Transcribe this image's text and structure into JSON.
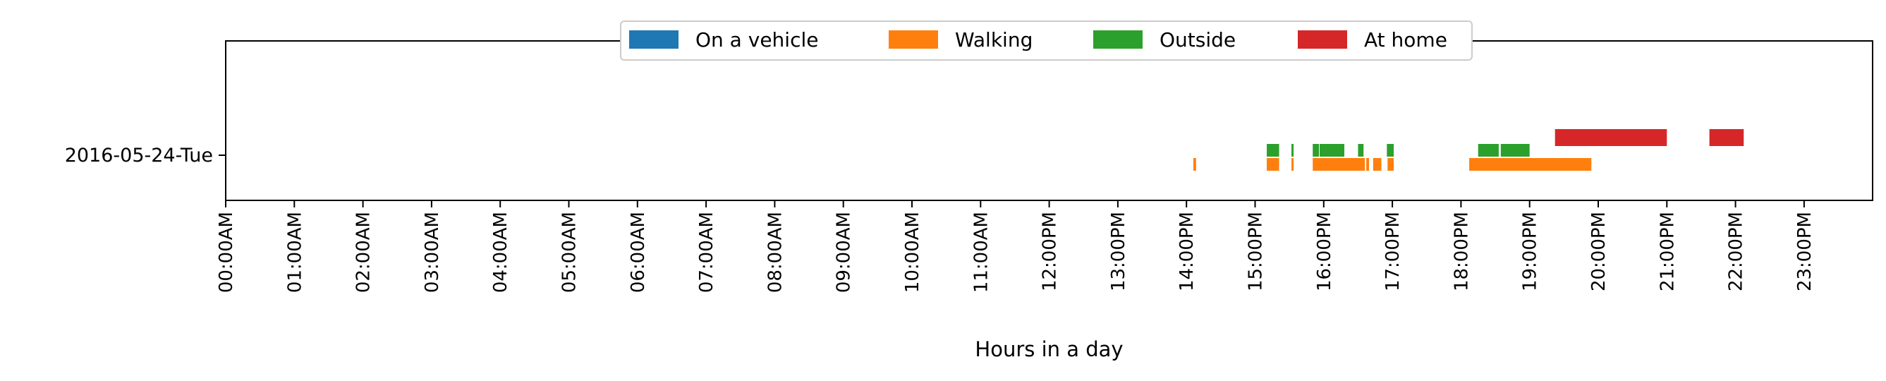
{
  "chart_data": {
    "type": "timeline",
    "xlabel": "Hours in a day",
    "xlim": [
      0,
      24
    ],
    "x_ticks": [
      {
        "value": 0,
        "label": "00:00AM"
      },
      {
        "value": 1,
        "label": "01:00AM"
      },
      {
        "value": 2,
        "label": "02:00AM"
      },
      {
        "value": 3,
        "label": "03:00AM"
      },
      {
        "value": 4,
        "label": "04:00AM"
      },
      {
        "value": 5,
        "label": "05:00AM"
      },
      {
        "value": 6,
        "label": "06:00AM"
      },
      {
        "value": 7,
        "label": "07:00AM"
      },
      {
        "value": 8,
        "label": "08:00AM"
      },
      {
        "value": 9,
        "label": "09:00AM"
      },
      {
        "value": 10,
        "label": "10:00AM"
      },
      {
        "value": 11,
        "label": "11:00AM"
      },
      {
        "value": 12,
        "label": "12:00PM"
      },
      {
        "value": 13,
        "label": "13:00PM"
      },
      {
        "value": 14,
        "label": "14:00PM"
      },
      {
        "value": 15,
        "label": "15:00PM"
      },
      {
        "value": 16,
        "label": "16:00PM"
      },
      {
        "value": 17,
        "label": "17:00PM"
      },
      {
        "value": 18,
        "label": "18:00PM"
      },
      {
        "value": 19,
        "label": "19:00PM"
      },
      {
        "value": 20,
        "label": "20:00PM"
      },
      {
        "value": 21,
        "label": "21:00PM"
      },
      {
        "value": 22,
        "label": "22:00PM"
      },
      {
        "value": 23,
        "label": "23:00PM"
      }
    ],
    "rows": [
      "2016-05-24-Tue"
    ],
    "legend_position": "top-center",
    "grid": false,
    "series": [
      {
        "name": "On a vehicle",
        "color": "#1f77b4",
        "lane": 0,
        "intervals": []
      },
      {
        "name": "Walking",
        "color": "#ff7f0e",
        "lane": 0,
        "intervals": [
          [
            14.1,
            14.14
          ],
          [
            15.17,
            15.35
          ],
          [
            15.53,
            15.56
          ],
          [
            15.84,
            16.6
          ],
          [
            16.62,
            16.66
          ],
          [
            16.72,
            16.84
          ],
          [
            16.93,
            17.02
          ],
          [
            18.12,
            19.9
          ]
        ]
      },
      {
        "name": "Outside",
        "color": "#2ca02c",
        "lane": 1,
        "intervals": [
          [
            15.17,
            15.35
          ],
          [
            15.53,
            15.56
          ],
          [
            15.84,
            15.93
          ],
          [
            15.94,
            16.3
          ],
          [
            16.5,
            16.58
          ],
          [
            16.92,
            17.02
          ],
          [
            18.25,
            18.55
          ],
          [
            18.58,
            19.0
          ]
        ]
      },
      {
        "name": "At home",
        "color": "#d62728",
        "lane": 2,
        "intervals": [
          [
            19.37,
            21.0
          ],
          [
            21.62,
            22.12
          ]
        ]
      }
    ]
  }
}
